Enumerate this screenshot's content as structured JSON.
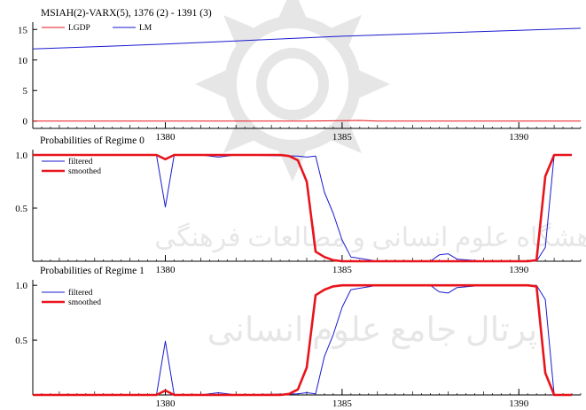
{
  "chart_data": [
    {
      "type": "line",
      "title": "MSIAH(2)-VARX(5), 1376 (2) - 1391 (3)",
      "xlim": [
        1376.25,
        1391.75
      ],
      "ylim": [
        -1.2,
        16.2
      ],
      "yticks": [
        0,
        5,
        10,
        15
      ],
      "xticks": [
        1380,
        1385,
        1390
      ],
      "grid": false,
      "legend": "top-left, horizontal",
      "series": [
        {
          "name": "LGDP",
          "color": "#e8141c",
          "x": [
            1376.25,
            1380,
            1384,
            1385.5,
            1386,
            1390,
            1391.75
          ],
          "y": [
            0,
            0,
            0,
            0.1,
            0,
            0,
            0
          ]
        },
        {
          "name": "LM",
          "color": "#1a1ad0",
          "x": [
            1376.25,
            1380,
            1385,
            1391.75
          ],
          "y": [
            11.8,
            12.6,
            13.9,
            15.2
          ]
        }
      ]
    },
    {
      "type": "line",
      "title": "Probabilities of Regime 0",
      "xlim": [
        1376.25,
        1391.75
      ],
      "ylim": [
        0,
        1.05
      ],
      "yticks": [
        0.5,
        1.0
      ],
      "xticks": [
        1380,
        1385,
        1390
      ],
      "grid": false,
      "legend": "top-left",
      "series": [
        {
          "name": "filtered",
          "color": "#1a1ad0",
          "x": [
            1376.25,
            1379.75,
            1380,
            1380.25,
            1381,
            1381.5,
            1382,
            1383.75,
            1384,
            1384.25,
            1384.5,
            1384.75,
            1385,
            1385.25,
            1386,
            1387.5,
            1387.75,
            1388,
            1388.25,
            1389,
            1390.25,
            1390.5,
            1390.75,
            1391,
            1391.5
          ],
          "y": [
            1,
            1,
            0.51,
            1,
            1,
            0.98,
            1,
            0.99,
            0.98,
            0.99,
            0.65,
            0.45,
            0.2,
            0.04,
            0,
            0,
            0.06,
            0.07,
            0.02,
            0,
            0,
            0,
            0.13,
            1,
            1
          ]
        },
        {
          "name": "smoothed",
          "color": "#e8141c",
          "x": [
            1376.25,
            1379.75,
            1380,
            1380.25,
            1383.25,
            1383.5,
            1383.75,
            1384,
            1384.25,
            1384.5,
            1384.75,
            1385,
            1385.5,
            1390.25,
            1390.5,
            1390.75,
            1391,
            1391.5
          ],
          "y": [
            1,
            1,
            0.96,
            1,
            1,
            0.99,
            0.95,
            0.75,
            0.09,
            0.04,
            0.01,
            0,
            0,
            0,
            0.01,
            0.8,
            1,
            1
          ]
        }
      ]
    },
    {
      "type": "line",
      "title": "Probabilities of Regime 1",
      "xlim": [
        1376.25,
        1391.75
      ],
      "ylim": [
        0,
        1.05
      ],
      "yticks": [
        0.5,
        1.0
      ],
      "xticks": [
        1380,
        1385,
        1390
      ],
      "grid": false,
      "legend": "top-left",
      "series": [
        {
          "name": "filtered",
          "color": "#1a1ad0",
          "x": [
            1376.25,
            1379.75,
            1380,
            1380.25,
            1381,
            1381.5,
            1382,
            1383.75,
            1384,
            1384.25,
            1384.5,
            1384.75,
            1385,
            1385.25,
            1386,
            1387.5,
            1387.75,
            1388,
            1388.25,
            1389,
            1390.25,
            1390.5,
            1390.75,
            1391,
            1391.5
          ],
          "y": [
            0,
            0,
            0.49,
            0,
            0,
            0.02,
            0,
            0.01,
            0.02,
            0.01,
            0.35,
            0.55,
            0.8,
            0.96,
            1,
            1,
            0.94,
            0.93,
            0.98,
            1,
            1,
            1,
            0.87,
            0,
            0
          ]
        },
        {
          "name": "smoothed",
          "color": "#e8141c",
          "x": [
            1376.25,
            1379.75,
            1380,
            1380.25,
            1383.25,
            1383.5,
            1383.75,
            1384,
            1384.25,
            1384.5,
            1384.75,
            1385,
            1385.5,
            1390.25,
            1390.5,
            1390.75,
            1391,
            1391.5
          ],
          "y": [
            0,
            0,
            0.04,
            0,
            0,
            0.01,
            0.05,
            0.25,
            0.91,
            0.96,
            0.99,
            1,
            1,
            1,
            0.99,
            0.2,
            0,
            0
          ]
        }
      ]
    }
  ]
}
